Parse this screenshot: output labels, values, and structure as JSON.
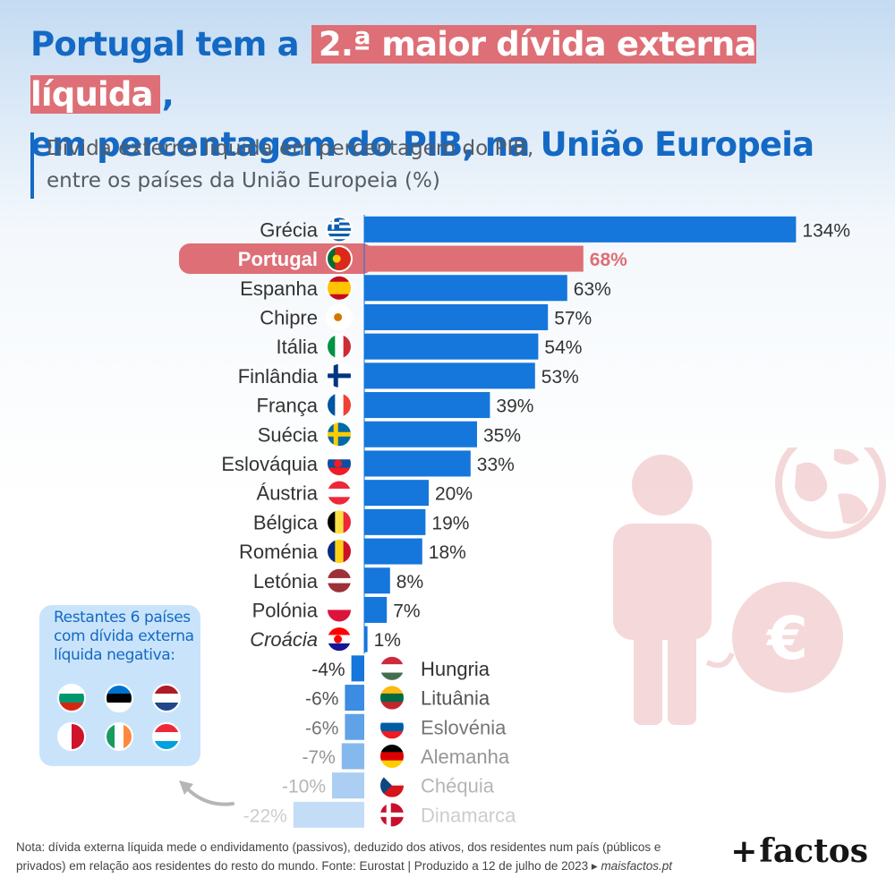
{
  "title": {
    "part1": "Portugal tem a",
    "highlight": "2.ª maior dívida externa líquida",
    "part2": ",",
    "line2": "em percentagem do PIB, na União Europeia"
  },
  "subtitle": {
    "line1": "Dívida externa líquida em percentagem do PIB,",
    "line2": "entre os países da União Europeia (%)"
  },
  "colors": {
    "bar": "#1576dc",
    "highlight": "#de6f76",
    "title": "#1469c4",
    "text": "#333333"
  },
  "chart_data": {
    "type": "bar",
    "orientation": "horizontal",
    "highlight": "Portugal",
    "categories": [
      "Grécia",
      "Portugal",
      "Espanha",
      "Chipre",
      "Itália",
      "Finlândia",
      "França",
      "Suécia",
      "Eslováquia",
      "Áustria",
      "Bélgica",
      "Roménia",
      "Letónia",
      "Polónia",
      "Croácia",
      "Hungria",
      "Lituânia",
      "Eslovénia",
      "Alemanha",
      "Chéquia",
      "Dinamarca"
    ],
    "values": [
      134,
      68,
      63,
      57,
      54,
      53,
      39,
      35,
      33,
      20,
      19,
      18,
      8,
      7,
      1,
      -4,
      -6,
      -6,
      -7,
      -10,
      -22
    ],
    "value_labels": [
      "134%",
      "68%",
      "63%",
      "57%",
      "54%",
      "53%",
      "39%",
      "35%",
      "33%",
      "20%",
      "19%",
      "18%",
      "8%",
      "7%",
      "1%",
      "-4%",
      "-6%",
      "-6%",
      "-7%",
      "-10%",
      "-22%"
    ],
    "flags": [
      "GR",
      "PT",
      "ES",
      "CY",
      "IT",
      "FI",
      "FR",
      "SE",
      "SK",
      "AT",
      "BE",
      "RO",
      "LV",
      "PL",
      "HR",
      "HU",
      "LT",
      "SI",
      "DE",
      "CZ",
      "DK"
    ],
    "italic": [
      "Croácia"
    ]
  },
  "rest": {
    "text": "Restantes 6 países com dívida externa líquida negativa:",
    "flags": [
      "BG",
      "EE",
      "NL",
      "MT",
      "IE",
      "LU"
    ]
  },
  "note": {
    "text": "Nota: dívida externa líquida mede o endividamento (passivos), deduzido dos ativos, dos residentes num país (públicos e privados) em relação aos residentes do resto do mundo. Fonte: Eurostat | Produzido a 12 de julho de 2023 ▸ ",
    "site": "maisfactos.pt"
  },
  "logo": {
    "plus": "+",
    "word": "factos"
  }
}
